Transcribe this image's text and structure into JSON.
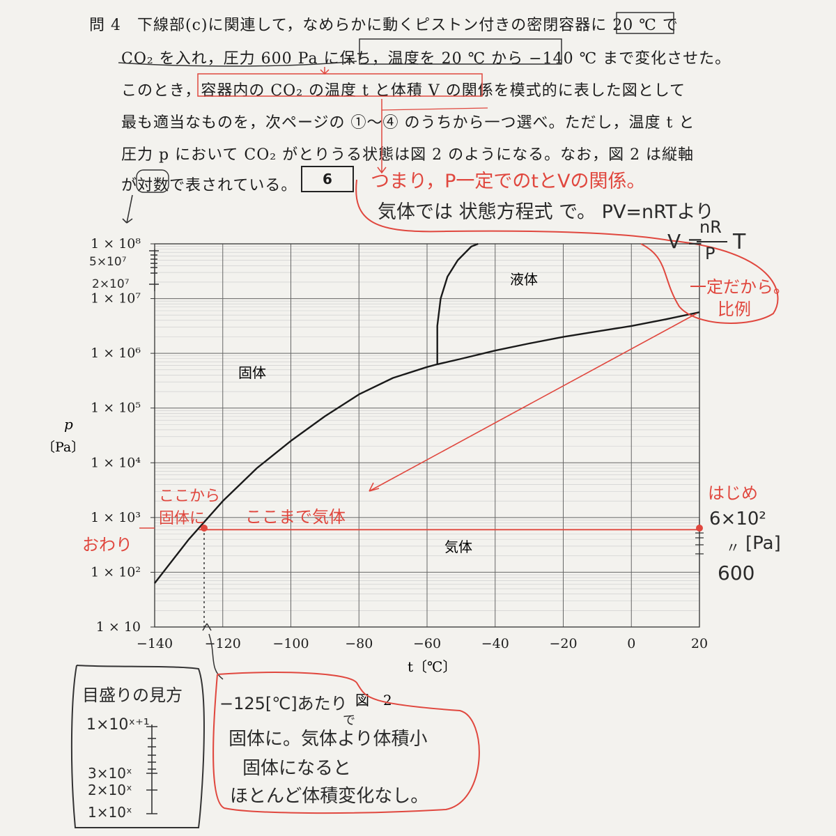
{
  "question": {
    "lines": [
      "問 4　下線部(c)に関連して，なめらかに動くピストン付きの密閉容器に 20 ℃ で",
      "CO₂ を入れ，圧力 600 Pa に保ち，温度を 20 ℃ から −140 ℃ まで変化させた。",
      "このとき，容器内の CO₂ の温度 t と体積 V の関係を模式的に表した図として",
      "最も適当なものを，次ページの ①～④ のうちから一つ選べ。ただし，温度 t と",
      "圧力 p において CO₂ がとりうる状態は図 2 のようになる。なお，図 2 は縦軸",
      "が対数で表されている。"
    ],
    "answer_box": "6"
  },
  "chart_data": {
    "type": "line",
    "title": "図　2",
    "xlabel": "t〔℃〕",
    "ylabel": "p",
    "ylabel_unit": "〔Pa〕",
    "xlim": [
      -140,
      20
    ],
    "ylim_log10": [
      1,
      8
    ],
    "x_ticks": [
      "−140",
      "−120",
      "−100",
      "−80",
      "−60",
      "−40",
      "−20",
      "0",
      "20"
    ],
    "y_ticks": [
      "1 × 10",
      "1 × 10²",
      "1 × 10³",
      "1 × 10⁴",
      "1 × 10⁵",
      "1 × 10⁶",
      "1 × 10⁷",
      "1 × 10⁸"
    ],
    "y_scale": "log",
    "grid": true,
    "regions": [
      "固体",
      "液体",
      "気体"
    ],
    "series": [
      {
        "x": [
          -140,
          -130,
          -120,
          -110,
          -100,
          -90,
          -80,
          -70,
          -60,
          -57
        ],
        "log10_p": [
          1.8,
          2.6,
          3.3,
          3.9,
          4.4,
          4.85,
          5.25,
          5.55,
          5.75,
          5.8
        ]
      },
      {
        "x": [
          -57,
          -50,
          -40,
          -30,
          -20,
          -10,
          0,
          10,
          20
        ],
        "log10_p": [
          5.8,
          5.9,
          6.05,
          6.18,
          6.3,
          6.4,
          6.5,
          6.62,
          6.75
        ]
      },
      {
        "x": [
          -57,
          -57,
          -56,
          -54,
          -51,
          -47,
          -45
        ],
        "log10_p": [
          5.8,
          6.5,
          7.0,
          7.4,
          7.7,
          7.95,
          8.0
        ]
      }
    ],
    "annotation_line": {
      "log10_p": 2.778,
      "x_from": -127,
      "x_to": 20
    }
  },
  "annotations": {
    "red_header": "つまり，P一定でのtとVの関係。",
    "ink_gas": "気体では 状態方程式 で。 PV=nRTより",
    "formula_v": "V =",
    "formula_nr": "nR",
    "formula_p": "P",
    "formula_t": "T",
    "red_const": "一定だから。",
    "red_prop": "比例",
    "red_start": "はじめ",
    "red_end": "おわり",
    "red_solid_from": "ここから",
    "red_solid": "固体に",
    "red_gas_until": "ここまで気体",
    "ink_6x10": "6×10²",
    "ink_eq": "〃",
    "ink_pa": "[Pa]",
    "ink_600": "600",
    "ink_temp": "−125[℃]あたり",
    "ink_de": "で",
    "ink_solid1": "固体に。気体より体積小",
    "ink_solid2": "固体になると",
    "ink_solid3": "ほとんど体積変化なし。",
    "ink_scale_title": "目盛りの見方",
    "ink_scale_top": "1×10ˣ⁺¹",
    "ink_scale_3": "3×10ˣ",
    "ink_scale_2": "2×10ˣ",
    "ink_scale_1": "1×10ˣ",
    "ink_5x10": "5×10⁷",
    "ink_2x10": "2×10⁷"
  }
}
